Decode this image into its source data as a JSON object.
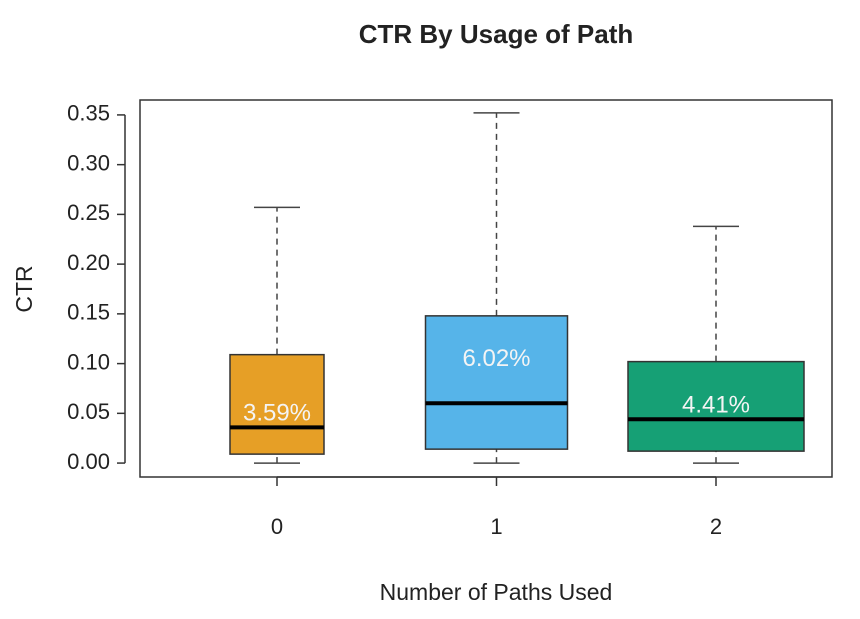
{
  "chart_data": {
    "type": "box",
    "title": "CTR By Usage of Path",
    "x_label": "Number of Paths Used",
    "y_label": "CTR",
    "categories": [
      "0",
      "1",
      "2"
    ],
    "min": [
      0,
      0,
      0
    ],
    "q1": [
      0.009,
      0.014,
      0.012
    ],
    "median": [
      0.0359,
      0.0602,
      0.0441
    ],
    "median_labels": [
      "3.59%",
      "6.02%",
      "4.41%"
    ],
    "q3": [
      0.109,
      0.148,
      0.102
    ],
    "max": [
      0.257,
      0.352,
      0.238
    ],
    "colors": [
      "#e69f26",
      "#56b4e9",
      "#16a075"
    ],
    "ylim": [
      -0.014,
      0.365
    ],
    "yticks": [
      {
        "value": 0,
        "label": "0.00"
      },
      {
        "value": 0.05,
        "label": "0.05"
      },
      {
        "value": 0.1,
        "label": "0.10"
      },
      {
        "value": 0.15,
        "label": "0.15"
      },
      {
        "value": 0.2,
        "label": "0.20"
      },
      {
        "value": 0.25,
        "label": "0.25"
      },
      {
        "value": 0.3,
        "label": "0.30"
      },
      {
        "value": 0.35,
        "label": "0.35"
      }
    ]
  }
}
